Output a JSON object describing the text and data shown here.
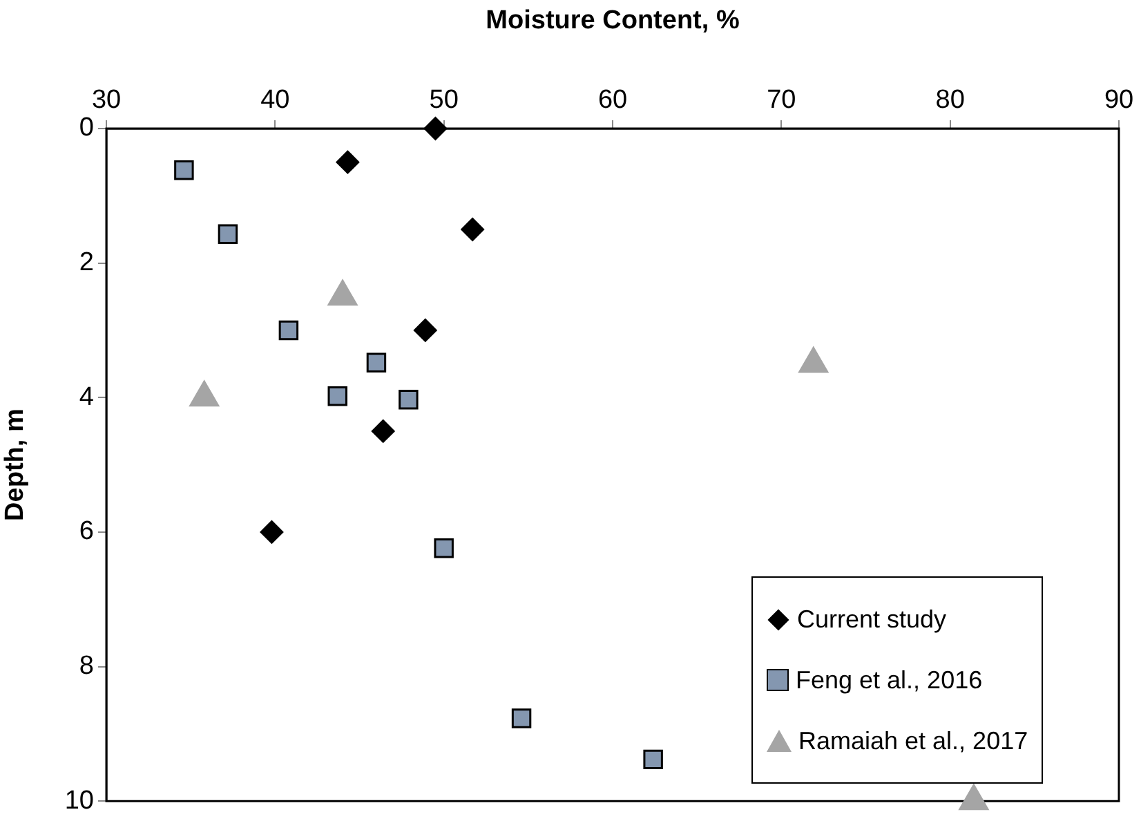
{
  "chart_data": {
    "type": "scatter",
    "xlabel": "Moisture Content, %",
    "ylabel": "Depth, m",
    "xlim": [
      30,
      90
    ],
    "xticks": [
      30,
      40,
      50,
      60,
      70,
      80,
      90
    ],
    "ylim": [
      10,
      0
    ],
    "yticks": [
      0,
      2,
      4,
      6,
      8,
      10
    ],
    "grid": false,
    "legend": "bottom right",
    "series": [
      {
        "name": "Current study",
        "color": "#000000",
        "marker": "diamond",
        "x": [
          49.5,
          44.3,
          51.7,
          48.9,
          46.4,
          39.8
        ],
        "values": [
          0,
          0.5,
          1.5,
          3,
          4.5,
          6
        ]
      },
      {
        "name": "Feng et al., 2016",
        "color": "#8497b0",
        "marker": "square",
        "x": [
          34.6,
          37.2,
          40.8,
          46,
          43.7,
          47.9,
          50,
          54.6,
          62.4
        ],
        "values": [
          0.62,
          1.57,
          3,
          3.48,
          3.98,
          4.03,
          6.24,
          8.77,
          9.38
        ]
      },
      {
        "name": "Ramaiah et al., 2017",
        "color": "#a5a5a5",
        "marker": "triangle",
        "x": [
          44,
          35.8,
          71.9,
          81.4
        ],
        "values": [
          2.5,
          4,
          3.5,
          10
        ]
      }
    ]
  }
}
